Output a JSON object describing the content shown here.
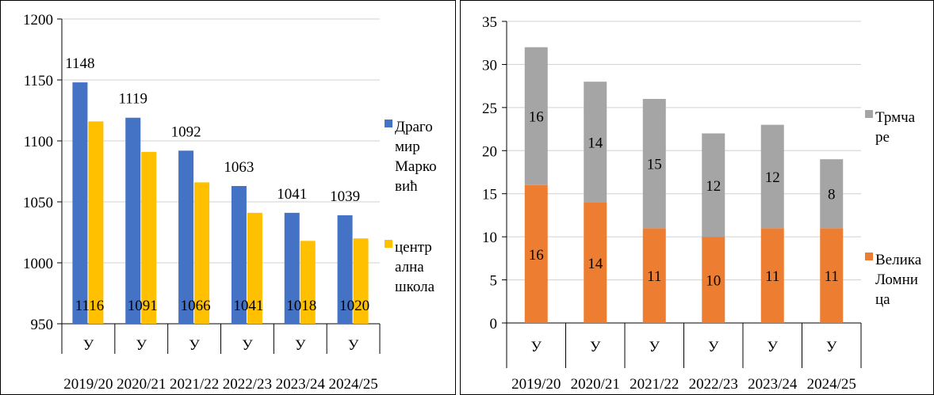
{
  "chart_data": [
    {
      "type": "bar",
      "title": "",
      "xlabel": "",
      "ylabel": "",
      "ylim": [
        950,
        1200
      ],
      "yticks": [
        950,
        1000,
        1050,
        1100,
        1150,
        1200
      ],
      "grid": true,
      "legend_position": "right",
      "categories": [
        "2019/20",
        "2020/21",
        "2021/22",
        "2022/23",
        "2023/24",
        "2024/25"
      ],
      "category_prefix": "У",
      "series": [
        {
          "name": "Драгомир Марковић",
          "legend_lines": [
            "Драго",
            "мир",
            "Марко",
            "вић"
          ],
          "color": "#4472C4",
          "values": [
            1148,
            1119,
            1092,
            1063,
            1041,
            1039
          ]
        },
        {
          "name": "централна школа",
          "legend_lines": [
            "центр",
            "ална",
            "школа"
          ],
          "color": "#FFC000",
          "values": [
            1116,
            1091,
            1066,
            1041,
            1018,
            1020
          ]
        }
      ]
    },
    {
      "type": "stacked-bar",
      "title": "",
      "xlabel": "",
      "ylabel": "",
      "ylim": [
        0,
        35
      ],
      "yticks": [
        0,
        5,
        10,
        15,
        20,
        25,
        30,
        35
      ],
      "grid": true,
      "legend_position": "right",
      "categories": [
        "2019/20",
        "2020/21",
        "2021/22",
        "2022/23",
        "2023/24",
        "2024/25"
      ],
      "category_prefix": "У",
      "series": [
        {
          "name": "Велика Ломница",
          "legend_lines": [
            "Велика",
            "Ломни",
            "ца"
          ],
          "color": "#ED7D31",
          "values": [
            16,
            14,
            11,
            10,
            11,
            11
          ]
        },
        {
          "name": "Трмчаре",
          "legend_lines": [
            "Трмча",
            "ре"
          ],
          "color": "#A5A5A5",
          "values": [
            16,
            14,
            15,
            12,
            12,
            8
          ]
        }
      ]
    }
  ]
}
